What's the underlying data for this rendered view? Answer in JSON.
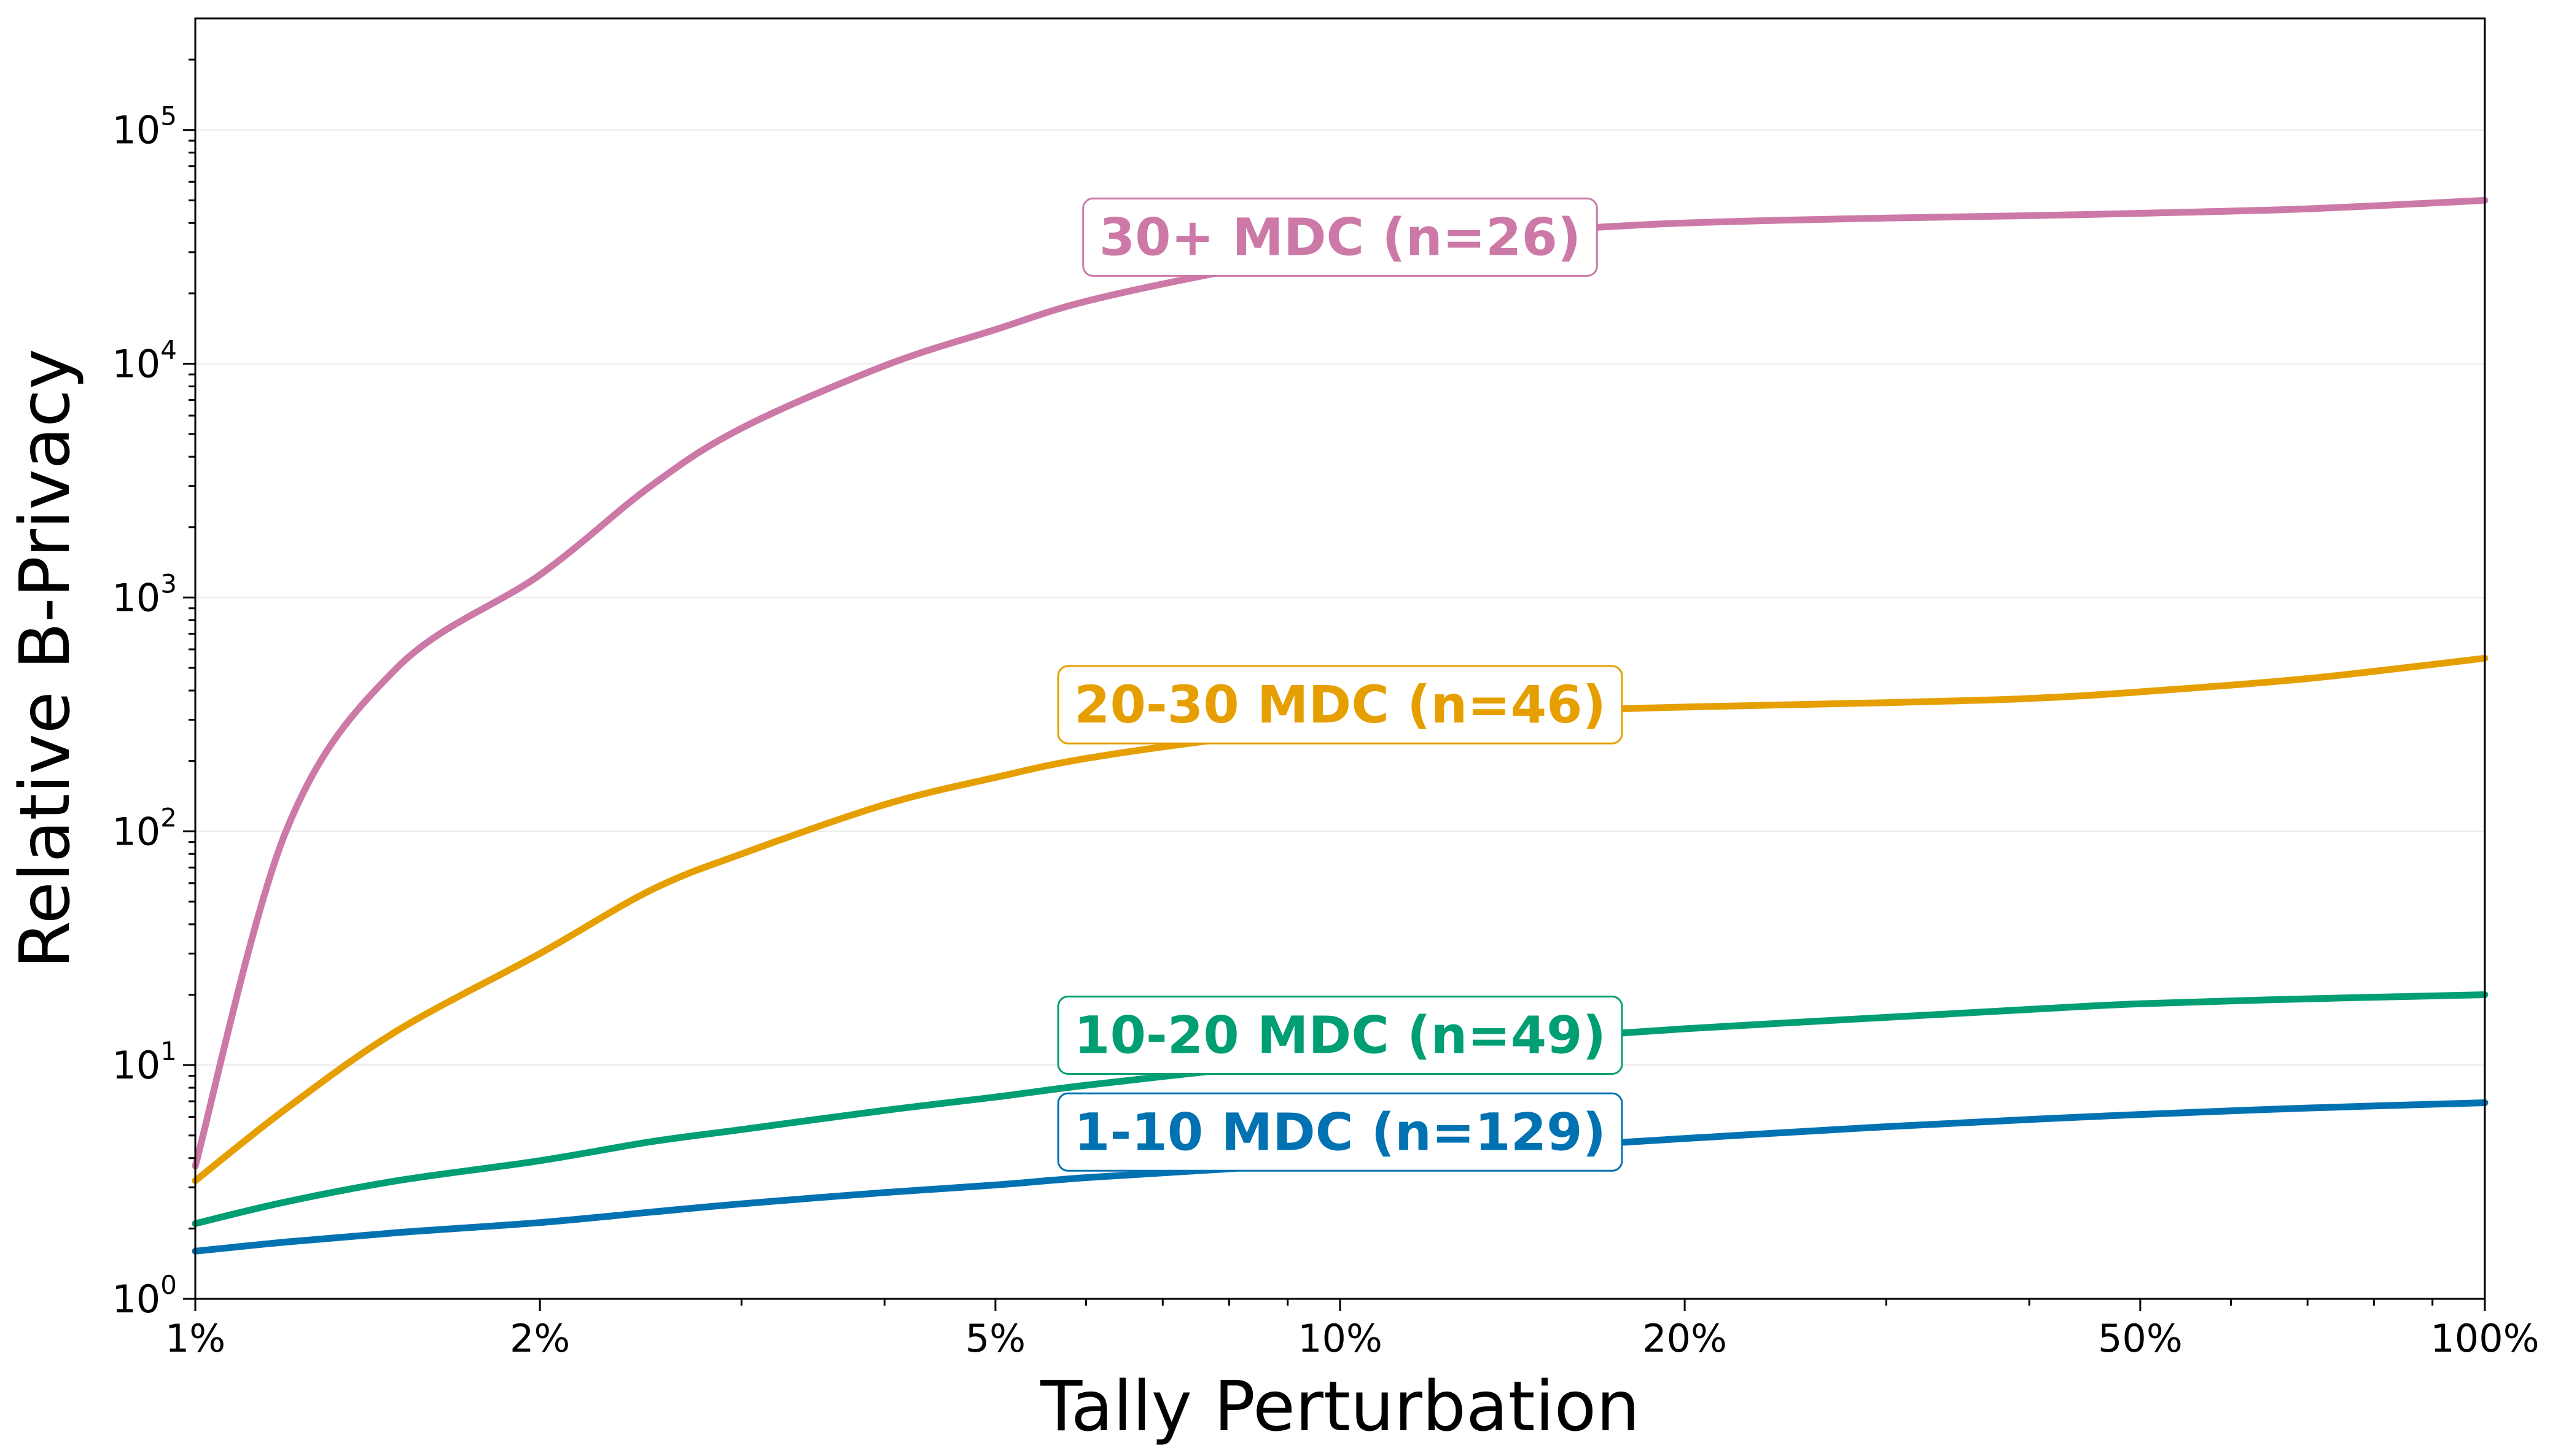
{
  "chart_data": {
    "type": "line",
    "title": "",
    "xlabel": "Tally Perturbation",
    "ylabel": "Relative B-Privacy",
    "xscale": "log",
    "yscale": "log",
    "xlim": [
      1,
      100
    ],
    "ylim": [
      1,
      300000
    ],
    "grid": "horizontal major gridlines",
    "x_ticks": [
      {
        "value": 1,
        "label": "1%"
      },
      {
        "value": 2,
        "label": "2%"
      },
      {
        "value": 5,
        "label": "5%"
      },
      {
        "value": 10,
        "label": "10%"
      },
      {
        "value": 20,
        "label": "20%"
      },
      {
        "value": 50,
        "label": "50%"
      },
      {
        "value": 100,
        "label": "100%"
      }
    ],
    "y_ticks": [
      {
        "value": 1,
        "base": "10",
        "exp": "0"
      },
      {
        "value": 10,
        "base": "10",
        "exp": "1"
      },
      {
        "value": 100,
        "base": "10",
        "exp": "2"
      },
      {
        "value": 1000,
        "base": "10",
        "exp": "3"
      },
      {
        "value": 10000,
        "base": "10",
        "exp": "4"
      },
      {
        "value": 100000,
        "base": "10",
        "exp": "5"
      }
    ],
    "x": [
      1,
      1.2,
      1.5,
      2,
      2.5,
      3,
      4,
      5,
      6,
      8,
      10,
      12,
      15,
      20,
      30,
      40,
      50,
      70,
      100
    ],
    "series": [
      {
        "name": "30+ MDC (n=26)",
        "color": "#CC79A7",
        "label_at": {
          "x": 10,
          "y": 35000
        },
        "values": [
          3.7,
          100,
          500,
          1250,
          3000,
          5300,
          9800,
          14000,
          18500,
          25000,
          30000,
          33500,
          37000,
          40000,
          42000,
          43000,
          44000,
          46000,
          50000
        ]
      },
      {
        "name": "20-30 MDC (n=46)",
        "color": "#E69F00",
        "label_at": {
          "x": 10,
          "y": 350
        },
        "values": [
          3.2,
          6.5,
          14,
          30,
          56,
          80,
          130,
          170,
          205,
          250,
          280,
          305,
          325,
          340,
          355,
          370,
          395,
          450,
          550
        ]
      },
      {
        "name": "10-20 MDC (n=49)",
        "color": "#009E73",
        "label_at": {
          "x": 10,
          "y": 13.5
        },
        "values": [
          2.1,
          2.6,
          3.2,
          3.9,
          4.7,
          5.3,
          6.4,
          7.3,
          8.2,
          9.6,
          10.8,
          11.8,
          13,
          14.3,
          16,
          17.3,
          18.3,
          19.2,
          20
        ]
      },
      {
        "name": "1-10 MDC (n=129)",
        "color": "#0072B2",
        "label_at": {
          "x": 10,
          "y": 5.2
        },
        "values": [
          1.6,
          1.75,
          1.92,
          2.12,
          2.35,
          2.55,
          2.85,
          3.07,
          3.3,
          3.6,
          3.9,
          4.15,
          4.45,
          4.85,
          5.45,
          5.85,
          6.15,
          6.55,
          6.9
        ]
      }
    ]
  }
}
